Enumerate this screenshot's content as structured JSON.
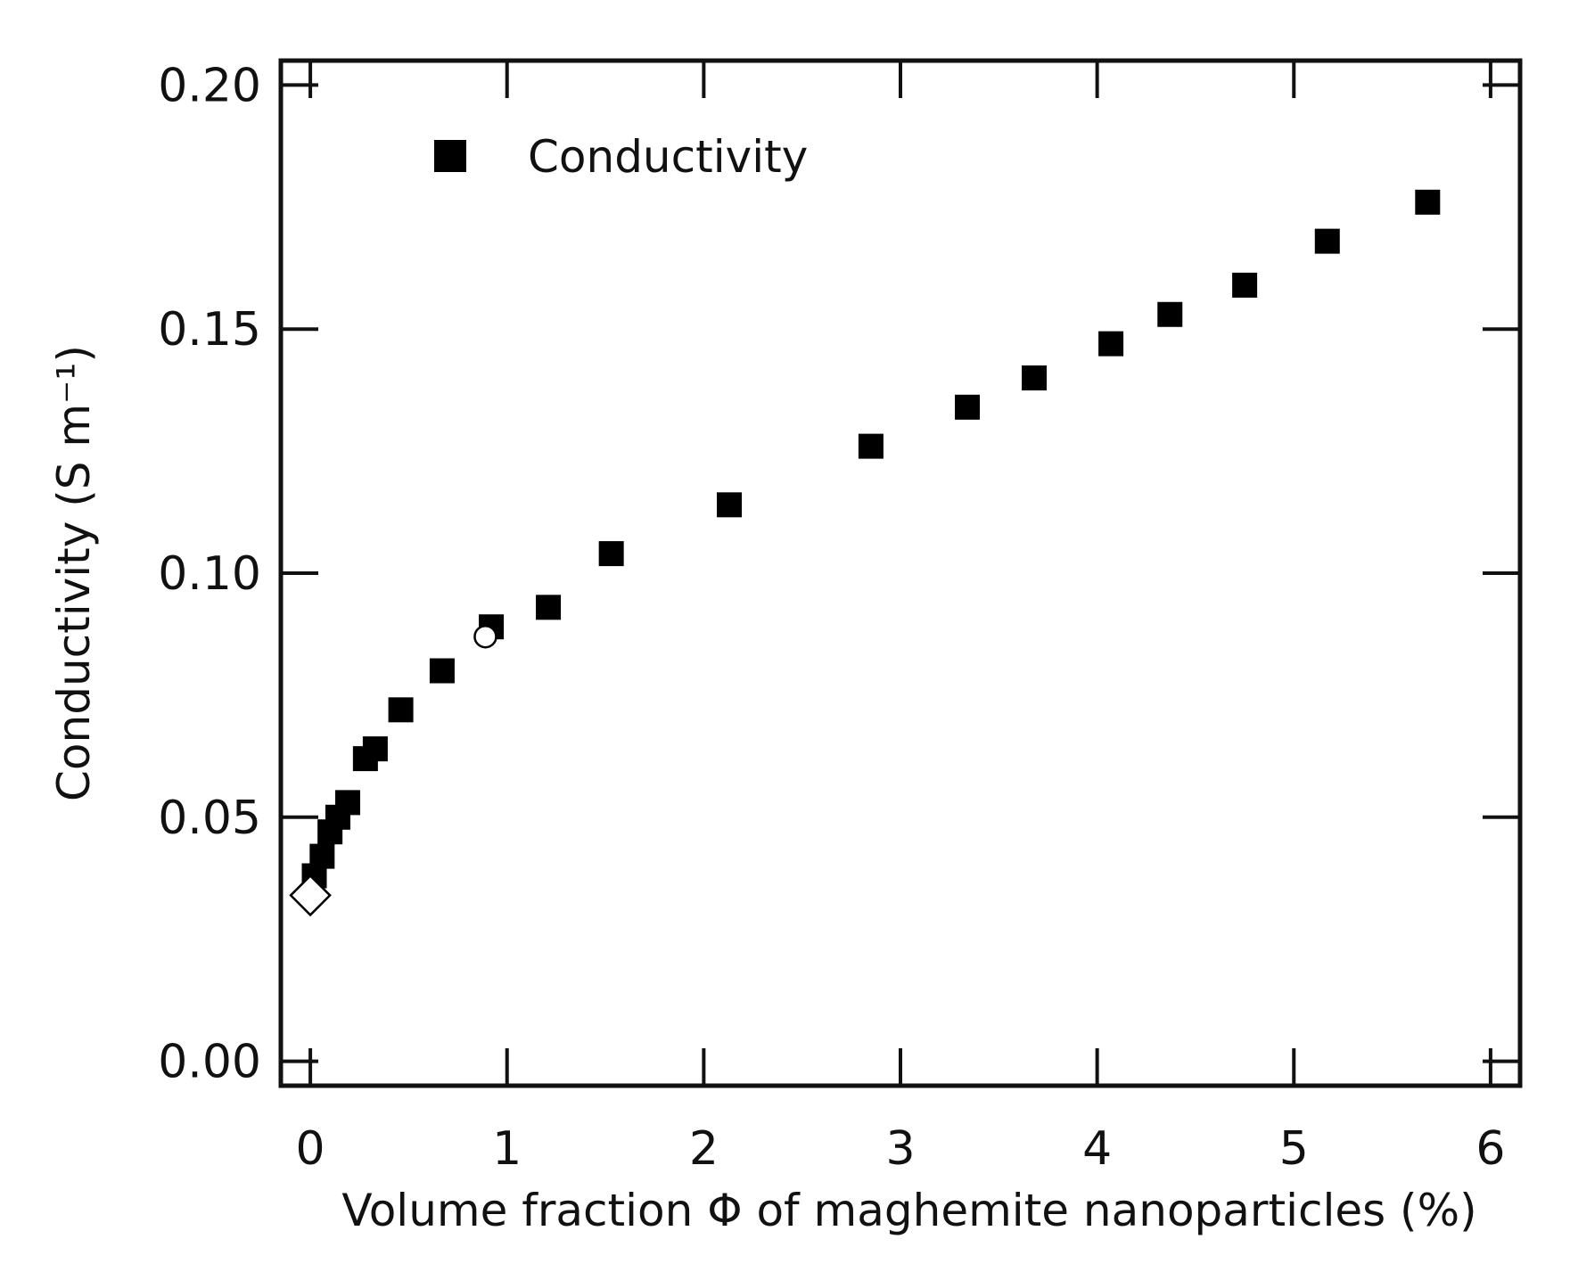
{
  "chart_data": {
    "type": "scatter",
    "title": "",
    "xlabel": "Volume fraction  Φ of maghemite nanoparticles (%)",
    "ylabel": "Conductivity (S m⁻¹)",
    "xlim": [
      -0.15,
      6.15
    ],
    "ylim": [
      -0.005,
      0.205
    ],
    "xticks": [
      0,
      1,
      2,
      3,
      4,
      5,
      6
    ],
    "xtick_labels": [
      "0",
      "1",
      "2",
      "3",
      "4",
      "5",
      "6"
    ],
    "yticks": [
      0.0,
      0.05,
      0.1,
      0.15,
      0.2
    ],
    "ytick_labels": [
      "0.00",
      "0.05",
      "0.10",
      "0.15",
      "0.20"
    ],
    "grid": false,
    "legend": {
      "position": "top-left",
      "entries": [
        "Conductivity"
      ]
    },
    "series": [
      {
        "name": "Conductivity",
        "marker": "filled-square",
        "color": "#000000",
        "x": [
          0.02,
          0.06,
          0.1,
          0.14,
          0.19,
          0.28,
          0.33,
          0.46,
          0.67,
          0.92,
          1.21,
          1.53,
          2.13,
          2.85,
          3.34,
          3.68,
          4.07,
          4.37,
          4.75,
          5.17,
          5.68
        ],
        "y": [
          0.038,
          0.042,
          0.047,
          0.05,
          0.053,
          0.062,
          0.064,
          0.072,
          0.08,
          0.089,
          0.093,
          0.104,
          0.114,
          0.126,
          0.134,
          0.14,
          0.147,
          0.153,
          0.159,
          0.168,
          0.176
        ]
      },
      {
        "name": "",
        "marker": "open-diamond",
        "color": "#000000",
        "x": [
          0.0
        ],
        "y": [
          0.034
        ]
      },
      {
        "name": "",
        "marker": "open-circle",
        "color": "#000000",
        "x": [
          0.89
        ],
        "y": [
          0.087
        ]
      }
    ]
  }
}
